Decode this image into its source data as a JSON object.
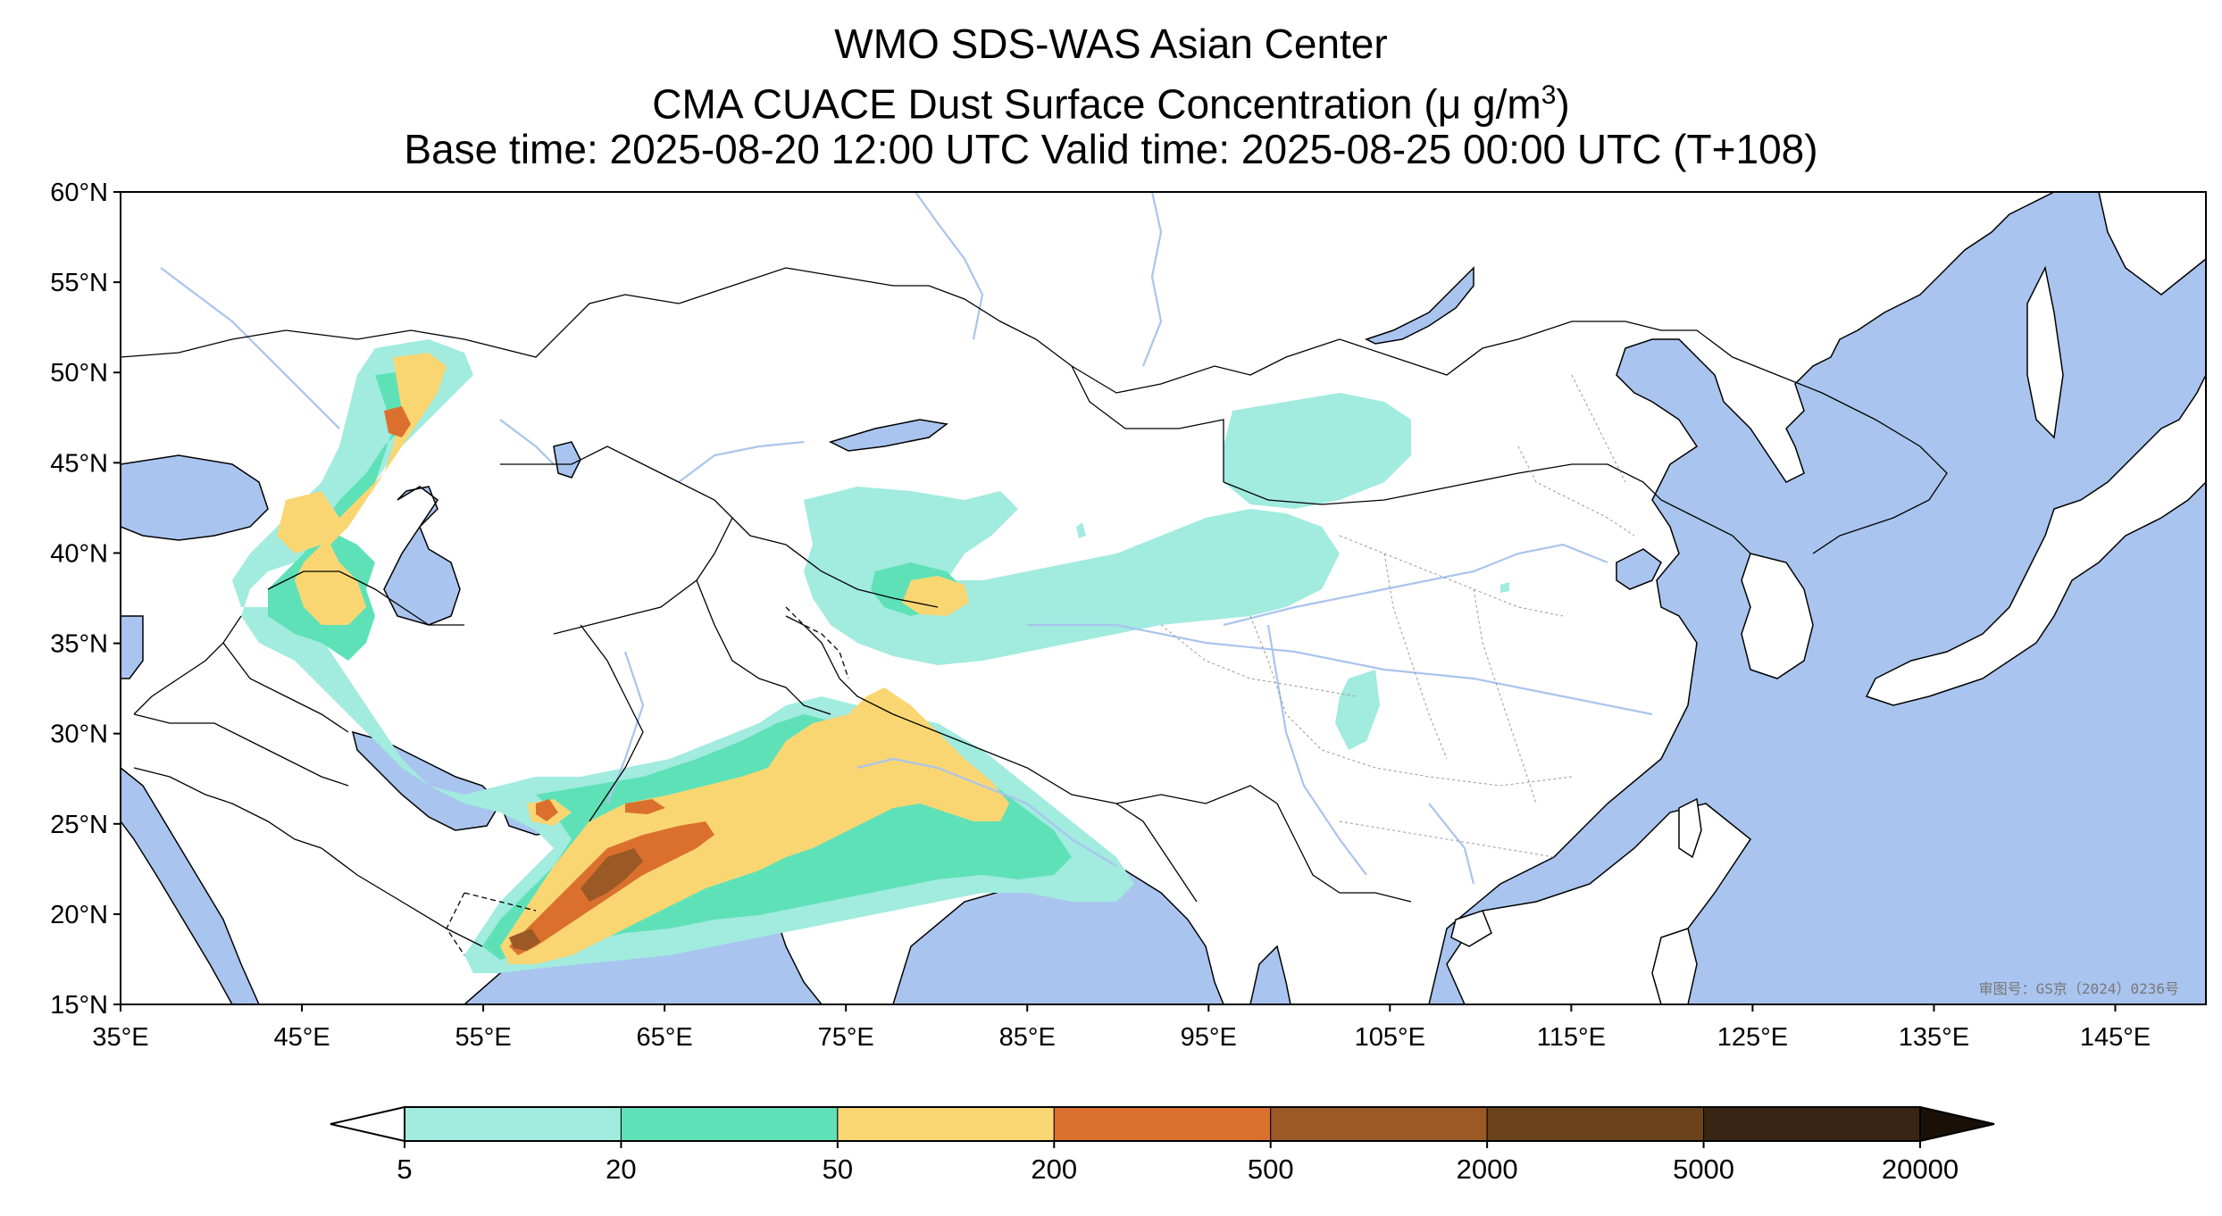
{
  "title": {
    "line1": "WMO SDS-WAS Asian Center",
    "line2_text": "CMA CUACE Dust Surface Concentration (μ g/m",
    "line2_sup": "3",
    "line2_end": ")",
    "line3": "Base time: 2025-08-20 12:00 UTC Valid time: 2025-08-25 00:00 UTC (T+108)"
  },
  "map": {
    "lon_range": [
      35,
      150
    ],
    "lat_range": [
      15,
      60
    ],
    "lat_ticks": [
      "15°N",
      "20°N",
      "25°N",
      "30°N",
      "35°N",
      "40°N",
      "45°N",
      "50°N",
      "55°N",
      "60°N"
    ],
    "lon_ticks": [
      "35°E",
      "45°E",
      "55°E",
      "65°E",
      "75°E",
      "85°E",
      "95°E",
      "105°E",
      "115°E",
      "125°E",
      "135°E",
      "145°E"
    ],
    "watermark": "审图号：GS京（2024）0236号",
    "colors": {
      "ocean": "#a9c4ee",
      "land": "#ffffff",
      "rivers": "#a9c4ee"
    }
  },
  "colorbar": {
    "tick_labels": [
      "5",
      "20",
      "50",
      "200",
      "500",
      "2000",
      "5000",
      "20000"
    ],
    "colors": [
      "#a1ebdf",
      "#5fe1b8",
      "#fad673",
      "#db702e",
      "#9a5925",
      "#6b421c",
      "#3a2414"
    ],
    "under_color": "#ffffff",
    "over_color": "#1a1008"
  }
}
